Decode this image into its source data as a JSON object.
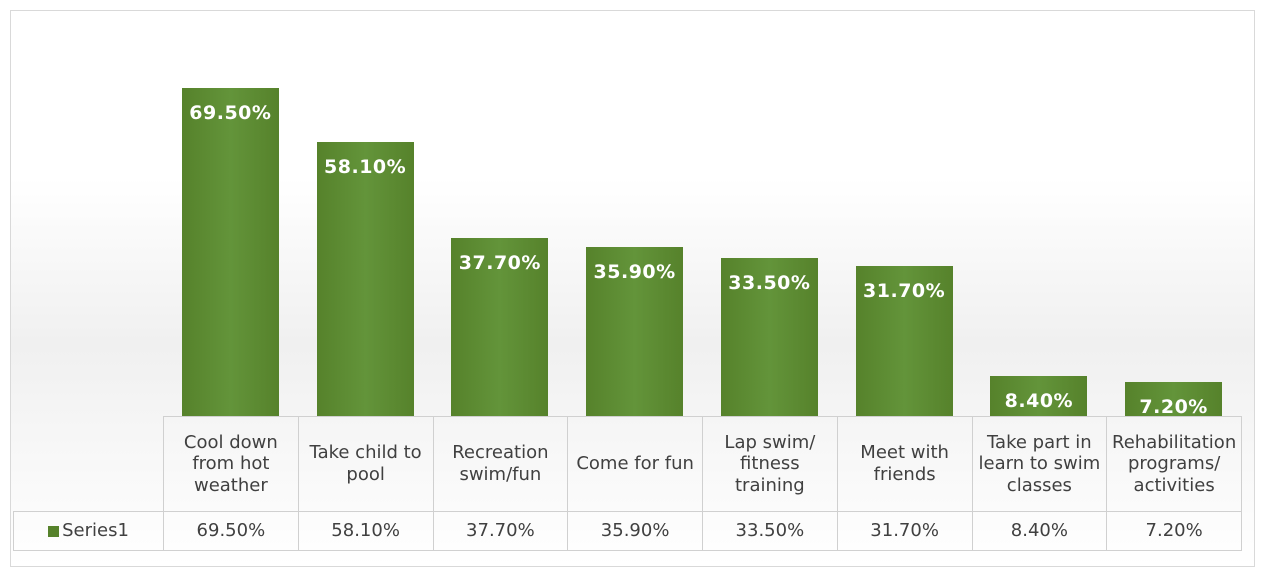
{
  "chart_data": {
    "type": "bar",
    "categories": [
      "Cool down from hot weather",
      "Take child to pool",
      "Recreation swim/fun",
      "Come for fun",
      "Lap swim/ fitness training",
      "Meet with friends",
      "Take part in learn to swim classes",
      "Rehabilitation programs/ activities"
    ],
    "series": [
      {
        "name": "Series1",
        "color": "#56822b",
        "values": [
          69.5,
          58.1,
          37.7,
          35.9,
          33.5,
          31.7,
          8.4,
          7.2
        ],
        "value_labels": [
          "69.50%",
          "58.10%",
          "37.70%",
          "35.90%",
          "33.50%",
          "31.70%",
          "8.40%",
          "7.20%"
        ]
      }
    ],
    "data_table": true
  }
}
